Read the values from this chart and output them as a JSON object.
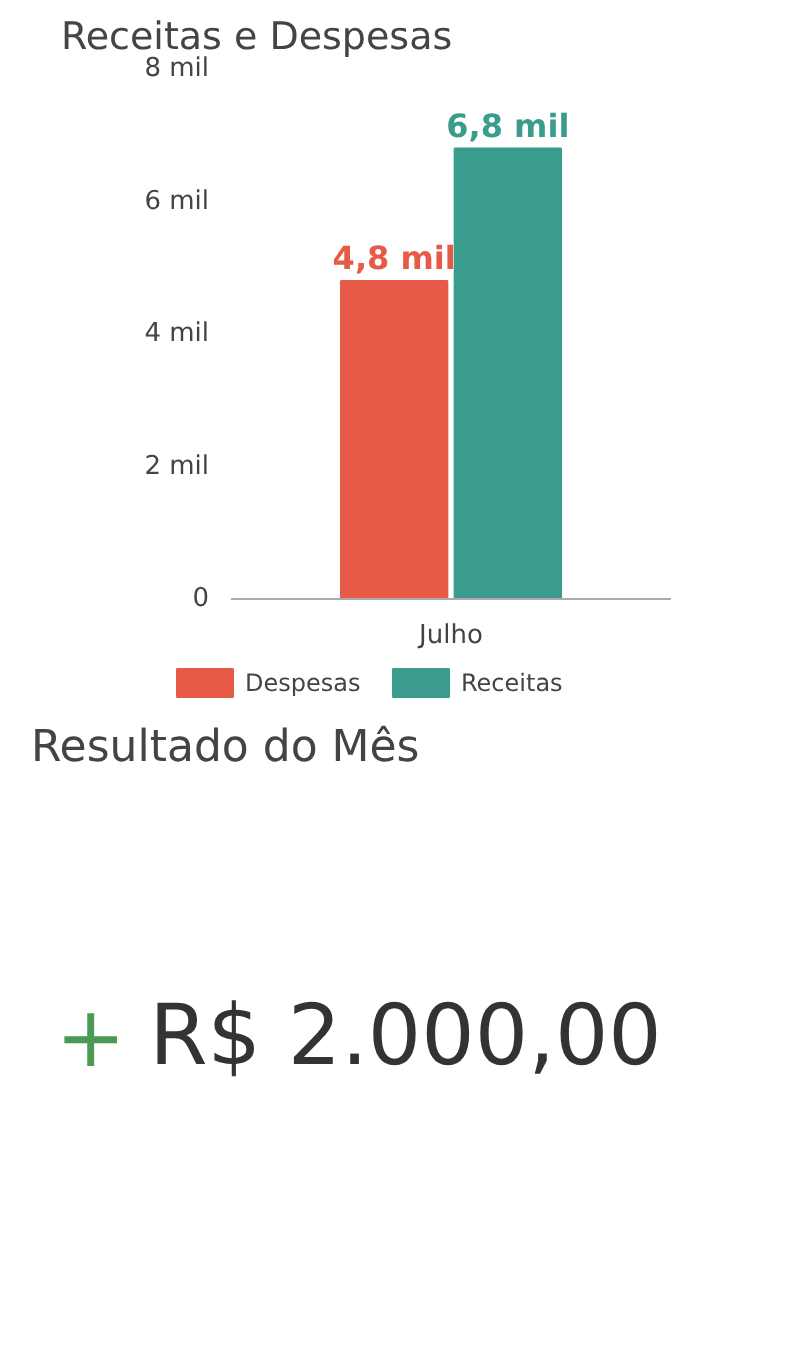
{
  "chart_data": [
    {
      "type": "bar",
      "title": "Receitas e Despesas",
      "categories": [
        "Julho"
      ],
      "series": [
        {
          "name": "Despesas",
          "color": "#e55b47",
          "values": [
            4.8
          ],
          "value_labels": [
            "4,8 mil"
          ]
        },
        {
          "name": "Receitas",
          "color": "#3a9c8c",
          "values": [
            6.8
          ],
          "value_labels": [
            "6,8 mil"
          ]
        }
      ],
      "ylim": [
        0,
        8
      ],
      "yticks": [
        0,
        {
          "value": 2,
          "label": "2 mil"
        },
        {
          "value": 4,
          "label": "4 mil"
        },
        {
          "value": 6,
          "label": "6 mil"
        },
        {
          "value": 8,
          "label": "8 mil"
        }
      ],
      "grid": false,
      "legend": "bottom"
    },
    {
      "type": "other",
      "title": "Resultado do Mês",
      "annotations": [
        "+",
        "R$ 2.000,00"
      ]
    }
  ]
}
